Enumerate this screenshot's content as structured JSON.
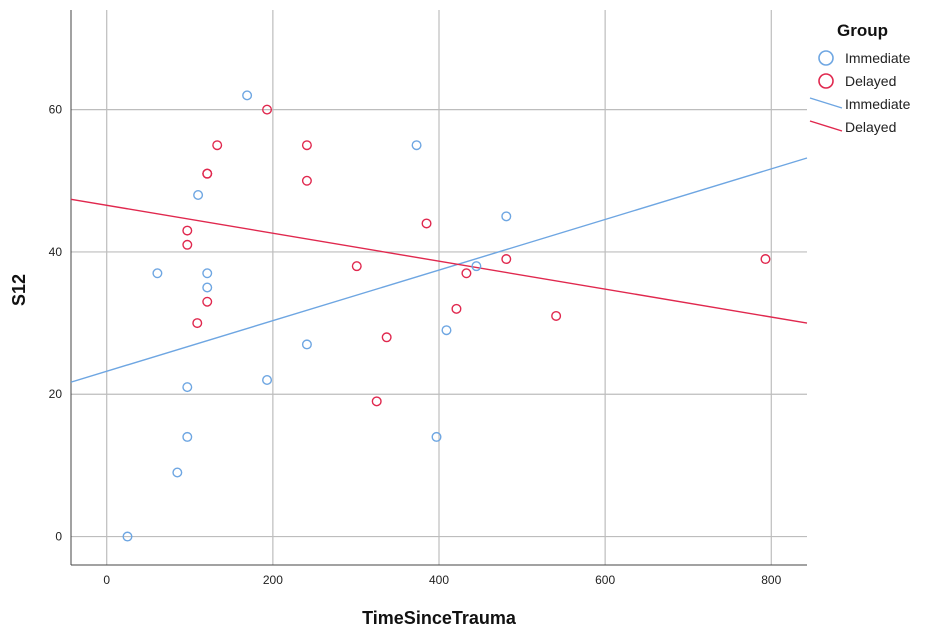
{
  "chart_data": {
    "type": "scatter",
    "xlabel": "TimeSinceTrauma",
    "ylabel": "S12",
    "xlim": [
      -43,
      843
    ],
    "ylim": [
      -4,
      74
    ],
    "xticks": [
      0,
      200,
      400,
      600,
      800
    ],
    "yticks": [
      0,
      20,
      40,
      60
    ],
    "grid": true,
    "legend": {
      "title": "Group",
      "placement": "top-right",
      "entries": [
        {
          "label": "Immediate",
          "kind": "marker",
          "series": "Immediate"
        },
        {
          "label": "Delayed",
          "kind": "marker",
          "series": "Delayed"
        },
        {
          "label": "Immediate",
          "kind": "line",
          "series": "Immediate"
        },
        {
          "label": "Delayed",
          "kind": "line",
          "series": "Delayed"
        }
      ]
    },
    "series": [
      {
        "name": "Immediate",
        "color": "#6ea6e2",
        "points": [
          {
            "x": 25,
            "y": 0
          },
          {
            "x": 85,
            "y": 9
          },
          {
            "x": 97,
            "y": 14
          },
          {
            "x": 97,
            "y": 21
          },
          {
            "x": 61,
            "y": 37
          },
          {
            "x": 110,
            "y": 48
          },
          {
            "x": 121,
            "y": 37
          },
          {
            "x": 121,
            "y": 35
          },
          {
            "x": 169,
            "y": 62
          },
          {
            "x": 193,
            "y": 22
          },
          {
            "x": 241,
            "y": 27
          },
          {
            "x": 373,
            "y": 55
          },
          {
            "x": 397,
            "y": 14
          },
          {
            "x": 409,
            "y": 29
          },
          {
            "x": 445,
            "y": 38
          },
          {
            "x": 481,
            "y": 45
          }
        ],
        "fit": {
          "x": [
            -43,
            843
          ],
          "y": [
            21.7,
            53.2
          ]
        }
      },
      {
        "name": "Delayed",
        "color": "#e0284e",
        "points": [
          {
            "x": 97,
            "y": 43
          },
          {
            "x": 97,
            "y": 41
          },
          {
            "x": 109,
            "y": 30
          },
          {
            "x": 121,
            "y": 51
          },
          {
            "x": 121,
            "y": 51
          },
          {
            "x": 121,
            "y": 33
          },
          {
            "x": 133,
            "y": 55
          },
          {
            "x": 193,
            "y": 60
          },
          {
            "x": 241,
            "y": 55
          },
          {
            "x": 241,
            "y": 50
          },
          {
            "x": 301,
            "y": 38
          },
          {
            "x": 325,
            "y": 19
          },
          {
            "x": 337,
            "y": 28
          },
          {
            "x": 385,
            "y": 44
          },
          {
            "x": 421,
            "y": 32
          },
          {
            "x": 433,
            "y": 37
          },
          {
            "x": 481,
            "y": 39
          },
          {
            "x": 541,
            "y": 31
          },
          {
            "x": 793,
            "y": 39
          }
        ],
        "fit": {
          "x": [
            -43,
            843
          ],
          "y": [
            47.4,
            30.0
          ]
        }
      }
    ]
  }
}
